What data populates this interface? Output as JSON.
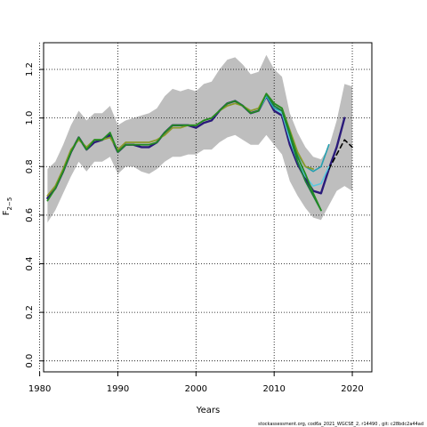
{
  "chart_data": {
    "type": "line",
    "title": "",
    "xlabel": "Years",
    "ylabel": "F",
    "ylabel_sub": "2−5",
    "xlim": [
      1980.5,
      2022.5
    ],
    "ylim": [
      -0.045,
      1.31
    ],
    "x_ticks": [
      1980,
      1990,
      2000,
      2010,
      2020
    ],
    "y_ticks": [
      0.0,
      0.2,
      0.4,
      0.6,
      0.8,
      1.0,
      1.2
    ],
    "y_tick_labels": [
      "0.0",
      "0.2",
      "0.4",
      "0.6",
      "0.8",
      "1.0",
      "1.2"
    ],
    "x_grid": [
      1980,
      1990,
      2000,
      2010,
      2020
    ],
    "y_grid": [
      0.0,
      0.2,
      0.4,
      0.6,
      0.8,
      1.0,
      1.2
    ],
    "grid": true,
    "band": {
      "color": "#bebebe",
      "years": [
        1981,
        1982,
        1983,
        1984,
        1985,
        1986,
        1987,
        1988,
        1989,
        1990,
        1991,
        1992,
        1993,
        1994,
        1995,
        1996,
        1997,
        1998,
        1999,
        2000,
        2001,
        2002,
        2003,
        2004,
        2005,
        2006,
        2007,
        2008,
        2009,
        2010,
        2011,
        2012,
        2013,
        2014,
        2015,
        2016,
        2017,
        2018,
        2019,
        2020
      ],
      "upper": [
        0.79,
        0.82,
        0.89,
        0.97,
        1.03,
        0.99,
        1.02,
        1.02,
        1.05,
        0.97,
        0.99,
        1.0,
        1.01,
        1.02,
        1.04,
        1.09,
        1.12,
        1.11,
        1.12,
        1.11,
        1.14,
        1.15,
        1.2,
        1.24,
        1.25,
        1.22,
        1.18,
        1.19,
        1.26,
        1.2,
        1.17,
        1.02,
        0.94,
        0.88,
        0.84,
        0.83,
        0.88,
        0.99,
        1.14,
        1.13
      ],
      "lower": [
        0.57,
        0.62,
        0.69,
        0.76,
        0.82,
        0.78,
        0.82,
        0.82,
        0.84,
        0.77,
        0.8,
        0.8,
        0.78,
        0.77,
        0.79,
        0.82,
        0.84,
        0.84,
        0.85,
        0.85,
        0.87,
        0.87,
        0.9,
        0.92,
        0.93,
        0.91,
        0.89,
        0.89,
        0.93,
        0.89,
        0.85,
        0.74,
        0.68,
        0.63,
        0.59,
        0.58,
        0.64,
        0.7,
        0.72,
        0.7
      ]
    },
    "series": [
      {
        "color": "#2a1a7a",
        "width": 2.4,
        "dash": "",
        "x": [
          1981,
          1982,
          1983,
          1984,
          1985,
          1986,
          1987,
          1988,
          1989,
          1990,
          1991,
          1992,
          1993,
          1994,
          1995,
          1996,
          1997,
          1998,
          1999,
          2000,
          2001,
          2002,
          2003,
          2004,
          2005,
          2006,
          2007,
          2008,
          2009,
          2010,
          2011,
          2012,
          2013,
          2014,
          2015,
          2016,
          2017,
          2018,
          2019
        ],
        "values": [
          0.67,
          0.71,
          0.78,
          0.86,
          0.92,
          0.87,
          0.9,
          0.91,
          0.93,
          0.86,
          0.89,
          0.89,
          0.88,
          0.88,
          0.9,
          0.94,
          0.97,
          0.97,
          0.97,
          0.96,
          0.98,
          0.99,
          1.03,
          1.06,
          1.07,
          1.05,
          1.02,
          1.03,
          1.09,
          1.03,
          1.01,
          0.89,
          0.81,
          0.75,
          0.7,
          0.69,
          0.79,
          0.88,
          1.0
        ]
      },
      {
        "color": "#000000",
        "width": 1.6,
        "dash": "5,4",
        "x": [
          2017,
          2018,
          2019,
          2020
        ],
        "values": [
          0.79,
          0.85,
          0.91,
          0.88
        ]
      },
      {
        "color": "#5bc8e0",
        "width": 1.6,
        "dash": "",
        "x": [
          2008,
          2009,
          2010,
          2011,
          2012,
          2013,
          2014,
          2015,
          2016,
          2017
        ],
        "values": [
          1.03,
          1.09,
          1.04,
          1.02,
          0.91,
          0.82,
          0.76,
          0.72,
          0.73,
          0.8
        ]
      },
      {
        "color": "#26a0b0",
        "width": 1.6,
        "dash": "",
        "x": [
          2009,
          2010,
          2011,
          2012,
          2013,
          2014,
          2015,
          2016,
          2017
        ],
        "values": [
          1.09,
          1.04,
          1.03,
          0.93,
          0.85,
          0.8,
          0.78,
          0.8,
          0.89
        ]
      },
      {
        "color": "#1b7a3a",
        "width": 1.8,
        "dash": "",
        "x": [
          2009,
          2010,
          2011,
          2012,
          2013,
          2014,
          2015,
          2016
        ],
        "values": [
          1.1,
          1.05,
          1.03,
          0.93,
          0.82,
          0.74,
          0.68,
          0.62
        ]
      },
      {
        "color": "#8a9a2a",
        "width": 1.8,
        "dash": "",
        "x": [
          1981,
          1982,
          1983,
          1984,
          1985,
          1986,
          1987,
          1988,
          1989,
          1990,
          1991,
          1992,
          1993,
          1994,
          1995,
          1996,
          1997,
          1998,
          1999,
          2000,
          2001,
          2002,
          2003,
          2004,
          2005,
          2006,
          2007,
          2008,
          2009,
          2010,
          2011,
          2012,
          2013,
          2014,
          2015
        ],
        "values": [
          0.68,
          0.72,
          0.79,
          0.87,
          0.91,
          0.88,
          0.91,
          0.91,
          0.92,
          0.87,
          0.9,
          0.9,
          0.9,
          0.9,
          0.91,
          0.93,
          0.96,
          0.96,
          0.97,
          0.97,
          0.99,
          1.0,
          1.03,
          1.05,
          1.06,
          1.05,
          1.03,
          1.04,
          1.1,
          1.06,
          1.04,
          0.95,
          0.86,
          0.8,
          0.79
        ]
      },
      {
        "color": "#228b22",
        "width": 1.8,
        "dash": "",
        "x": [
          1981,
          1982,
          1983,
          1984,
          1985,
          1986,
          1987,
          1988,
          1989,
          1990,
          1991,
          1992,
          1993,
          1994,
          1995,
          1996,
          1997,
          1998,
          1999,
          2000,
          2001,
          2002,
          2003,
          2004,
          2005,
          2006,
          2007,
          2008,
          2009,
          2010,
          2011,
          2012,
          2013,
          2014,
          2015,
          2016
        ],
        "values": [
          0.66,
          0.71,
          0.78,
          0.86,
          0.92,
          0.87,
          0.91,
          0.91,
          0.94,
          0.86,
          0.89,
          0.89,
          0.89,
          0.89,
          0.9,
          0.94,
          0.97,
          0.97,
          0.97,
          0.97,
          0.99,
          1.0,
          1.03,
          1.06,
          1.07,
          1.05,
          1.02,
          1.03,
          1.1,
          1.06,
          1.04,
          0.94,
          0.84,
          0.77,
          0.69,
          0.62
        ]
      }
    ]
  },
  "footer": "stockassessment.org,  cod6a_2021_WGCSE_2,  r14490 ,  git: c28bdc2a44ad"
}
